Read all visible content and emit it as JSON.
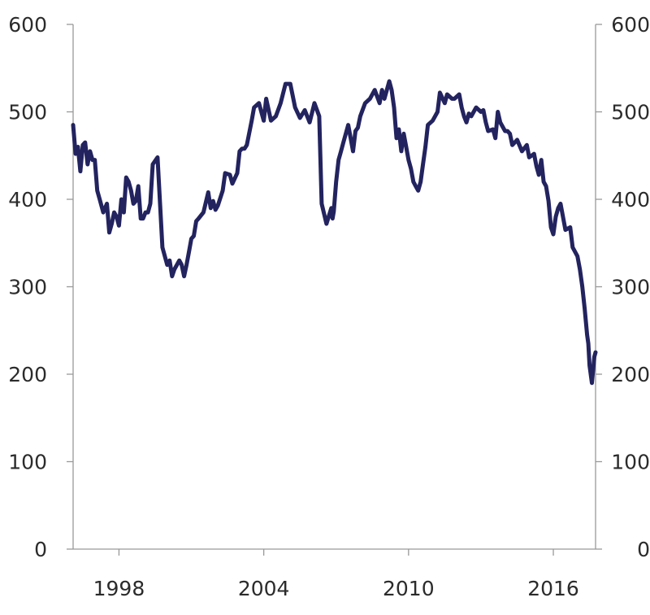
{
  "chart_data": {
    "type": "line",
    "title": "",
    "xlabel": "",
    "ylabel": "",
    "xlim": [
      1996.1,
      2017.75
    ],
    "ylim": [
      0,
      600
    ],
    "x_ticks": [
      1998,
      2004,
      2010,
      2016
    ],
    "x_tick_labels": [
      "1998",
      "2004",
      "2010",
      "2016"
    ],
    "y_ticks": [
      0,
      100,
      200,
      300,
      400,
      500,
      600
    ],
    "y_tick_labels_left": [
      "0",
      "100",
      "200",
      "300",
      "400",
      "500",
      "600"
    ],
    "y_tick_labels_right": [
      "0",
      "100",
      "200",
      "300",
      "400",
      "500",
      "600"
    ],
    "grid": false,
    "legend": "none",
    "line_color": "#23235f",
    "series": [
      {
        "x": [
          1996.1,
          1996.2,
          1996.3,
          1996.4,
          1996.5,
          1996.6,
          1996.7,
          1996.8,
          1996.9,
          1997.0,
          1997.1,
          1997.2,
          1997.35,
          1997.5,
          1997.6,
          1997.7,
          1997.8,
          1997.9,
          1998.0,
          1998.1,
          1998.2,
          1998.3,
          1998.4,
          1998.5,
          1998.6,
          1998.7,
          1998.8,
          1998.9,
          1999.0,
          1999.1,
          1999.2,
          1999.3,
          1999.4,
          1999.6,
          1999.8,
          2000.0,
          2000.1,
          2000.2,
          2000.3,
          2000.4,
          2000.5,
          2000.6,
          2000.7,
          2000.8,
          2000.9,
          2001.0,
          2001.1,
          2001.2,
          2001.3,
          2001.5,
          2001.7,
          2001.8,
          2001.9,
          2002.0,
          2002.1,
          2002.3,
          2002.4,
          2002.6,
          2002.7,
          2002.9,
          2003.0,
          2003.1,
          2003.2,
          2003.3,
          2003.5,
          2003.6,
          2003.8,
          2004.0,
          2004.1,
          2004.3,
          2004.5,
          2004.7,
          2004.9,
          2005.1,
          2005.3,
          2005.5,
          2005.7,
          2005.9,
          2006.1,
          2006.3,
          2006.4,
          2006.6,
          2006.8,
          2006.85,
          2006.9,
          2007.0,
          2007.1,
          2007.2,
          2007.3,
          2007.5,
          2007.7,
          2007.8,
          2007.9,
          2008.0,
          2008.2,
          2008.4,
          2008.6,
          2008.8,
          2008.9,
          2009.0,
          2009.2,
          2009.3,
          2009.4,
          2009.5,
          2009.6,
          2009.7,
          2009.8,
          2009.9,
          2010.0,
          2010.1,
          2010.2,
          2010.3,
          2010.4,
          2010.5,
          2010.6,
          2010.7,
          2010.8,
          2011.0,
          2011.2,
          2011.3,
          2011.5,
          2011.6,
          2011.8,
          2011.9,
          2012.1,
          2012.2,
          2012.3,
          2012.4,
          2012.5,
          2012.6,
          2012.8,
          2013.0,
          2013.1,
          2013.2,
          2013.3,
          2013.5,
          2013.6,
          2013.7,
          2013.8,
          2014.0,
          2014.1,
          2014.2,
          2014.3,
          2014.5,
          2014.7,
          2014.9,
          2015.0,
          2015.2,
          2015.3,
          2015.4,
          2015.5,
          2015.6,
          2015.7,
          2015.8,
          2015.9,
          2016.0,
          2016.1,
          2016.2,
          2016.3,
          2016.5,
          2016.7,
          2016.8,
          2017.0,
          2017.1,
          2017.2,
          2017.3,
          2017.4,
          2017.45,
          2017.5,
          2017.6,
          2017.7,
          2017.75
        ],
        "values": [
          485,
          452,
          460,
          432,
          462,
          465,
          440,
          455,
          445,
          445,
          410,
          400,
          385,
          395,
          362,
          372,
          385,
          380,
          370,
          400,
          385,
          425,
          420,
          410,
          395,
          398,
          415,
          378,
          378,
          385,
          385,
          395,
          440,
          448,
          345,
          325,
          330,
          312,
          320,
          325,
          330,
          325,
          312,
          325,
          340,
          355,
          358,
          375,
          378,
          385,
          408,
          390,
          398,
          388,
          393,
          410,
          430,
          428,
          418,
          430,
          455,
          458,
          458,
          462,
          490,
          505,
          510,
          490,
          515,
          490,
          495,
          510,
          532,
          532,
          505,
          493,
          502,
          488,
          510,
          495,
          395,
          372,
          390,
          378,
          386,
          420,
          445,
          455,
          465,
          485,
          455,
          478,
          482,
          495,
          510,
          515,
          525,
          510,
          525,
          515,
          535,
          525,
          505,
          470,
          480,
          455,
          475,
          460,
          445,
          435,
          420,
          415,
          410,
          420,
          440,
          460,
          485,
          490,
          500,
          522,
          510,
          520,
          515,
          515,
          520,
          505,
          495,
          488,
          498,
          495,
          505,
          500,
          502,
          488,
          478,
          480,
          470,
          500,
          488,
          478,
          478,
          475,
          462,
          468,
          455,
          462,
          448,
          452,
          438,
          428,
          445,
          420,
          415,
          398,
          368,
          360,
          380,
          390,
          395,
          365,
          368,
          345,
          335,
          320,
          300,
          275,
          245,
          235,
          210,
          190,
          220,
          225
        ]
      }
    ]
  }
}
